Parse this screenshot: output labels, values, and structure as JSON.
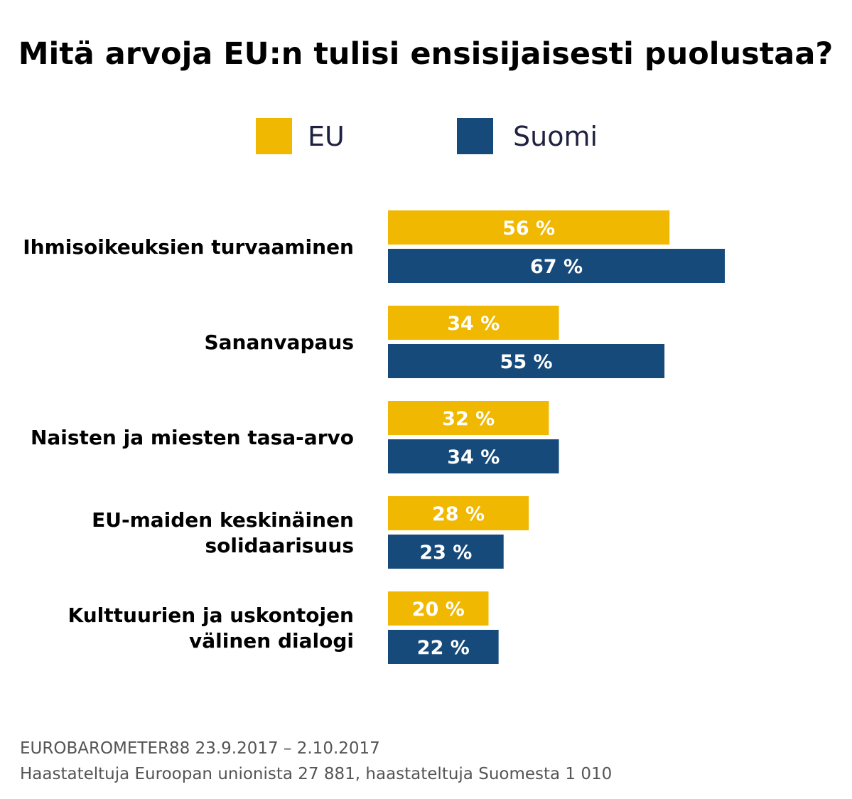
{
  "chart_data": {
    "type": "bar",
    "orientation": "horizontal",
    "title": "Mitä arvoja EU:n tulisi ensisijaisesti puolustaa?",
    "categories": [
      [
        "Ihmisoikeuksien turvaaminen"
      ],
      [
        "Sananvapaus"
      ],
      [
        "Naisten ja miesten tasa-arvo"
      ],
      [
        "EU-maiden keskinäinen",
        "solidaarisuus"
      ],
      [
        "Kulttuurien ja uskontojen",
        "välinen dialogi"
      ]
    ],
    "series": [
      {
        "name": "EU",
        "color": "#f0b800",
        "values": [
          56,
          34,
          32,
          28,
          20
        ],
        "labels": [
          "56 %",
          "34 %",
          "32 %",
          "28 %",
          "20 %"
        ]
      },
      {
        "name": "Suomi",
        "color": "#164a7a",
        "values": [
          67,
          55,
          34,
          23,
          22
        ],
        "labels": [
          "67 %",
          "55 %",
          "34 %",
          "23 %",
          "22 %"
        ]
      }
    ],
    "xlim": [
      0,
      67
    ],
    "xlabel": "",
    "ylabel": "",
    "legend": "top-center",
    "grid": false
  },
  "footnote": {
    "line1": "EUROBAROMETER88 23.9.2017 – 2.10.2017",
    "line2": "Haastateltuja Euroopan unionista 27 881, haastateltuja Suomesta 1 010"
  }
}
